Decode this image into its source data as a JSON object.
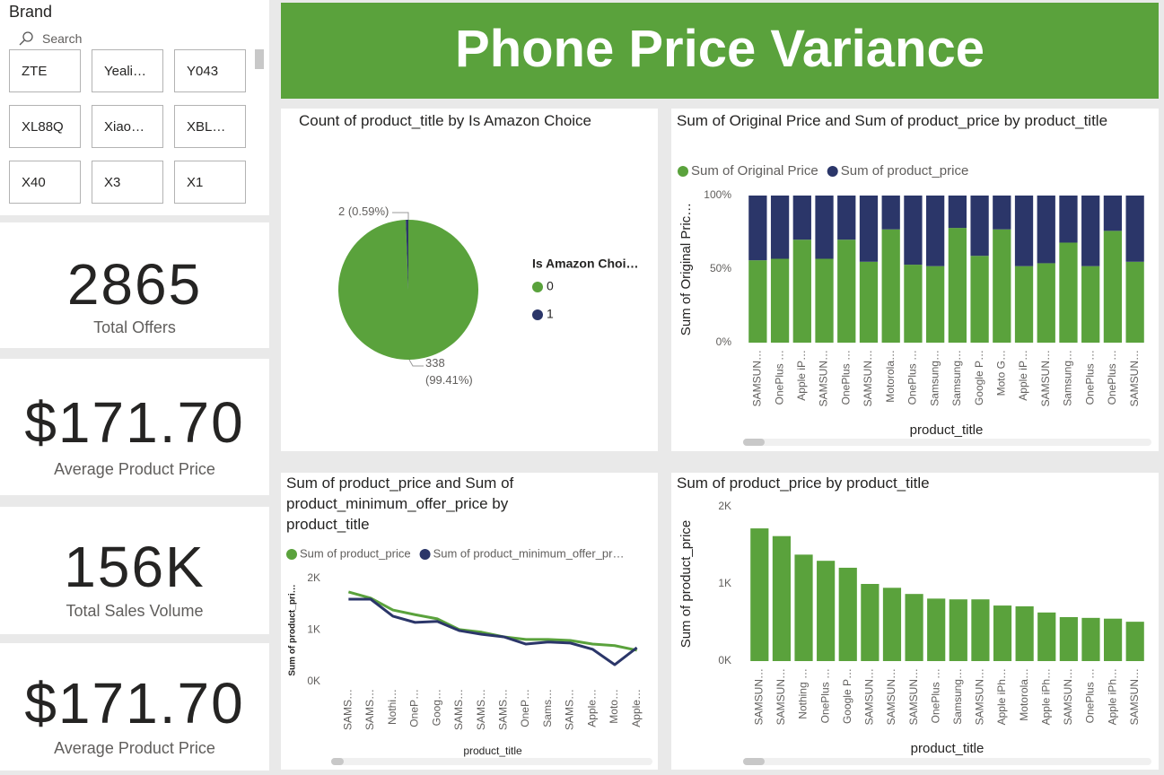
{
  "header": {
    "title": "Phone Price Variance"
  },
  "slicer": {
    "title": "Brand",
    "search": "Search",
    "items": [
      "ZTE",
      "Yeali…",
      "Y043",
      "XL88Q",
      "Xiao…",
      "XBL…",
      "X40",
      "X3",
      "X1"
    ]
  },
  "cards": [
    {
      "value": "2865",
      "label": "Total Offers"
    },
    {
      "value": "$171.70",
      "label": "Average Product Price"
    },
    {
      "value": "156K",
      "label": "Total Sales Volume"
    },
    {
      "value": "$171.70",
      "label": "Average Product Price"
    }
  ],
  "chart_data": [
    {
      "type": "pie",
      "title": "Count of product_title by Is Amazon Choice",
      "legend_title": "Is Amazon Choi…",
      "categories": [
        "0",
        "1"
      ],
      "values": [
        338,
        2
      ],
      "value_labels": [
        "338 (99.41%)",
        "2 (0.59%)"
      ],
      "colors": [
        "#5aa23c",
        "#2b3669"
      ]
    },
    {
      "type": "bar",
      "stacked": true,
      "title": "Sum of Original Price and Sum of product_price by product_title",
      "x_label": "product_title",
      "y_label": "Sum of Original Pric…",
      "categories": [
        "SAMSUN…",
        "OnePlus …",
        "Apple iP…",
        "SAMSUN…",
        "OnePlus …",
        "SAMSUN…",
        "Motorola…",
        "OnePlus …",
        "Samsung…",
        "Samsung…",
        "Google P…",
        "Moto G…",
        "Apple iP…",
        "SAMSUN…",
        "Samsung…",
        "OnePlus …",
        "OnePlus …",
        "SAMSUN…"
      ],
      "series": [
        {
          "name": "Sum of Original Price",
          "color": "#5aa23c",
          "values": [
            56,
            57,
            70,
            57,
            70,
            55,
            77,
            53,
            52,
            78,
            59,
            77,
            52,
            54,
            68,
            52,
            76,
            55
          ]
        },
        {
          "name": "Sum of product_price",
          "color": "#2b3669",
          "values": [
            44,
            43,
            30,
            43,
            30,
            45,
            23,
            47,
            48,
            22,
            41,
            23,
            48,
            46,
            32,
            48,
            24,
            45
          ]
        }
      ],
      "ylim": [
        0,
        100
      ],
      "yticks": [
        {
          "value": 0,
          "label": "0%"
        },
        {
          "value": 50,
          "label": "50%"
        },
        {
          "value": 100,
          "label": "100%"
        }
      ]
    },
    {
      "type": "line",
      "title": "Sum of product_price and Sum of product_minimum_offer_price by product_title",
      "x_label": "product_title",
      "y_label": "Sum of product_pri…",
      "categories": [
        "SAMS…",
        "SAMS…",
        "Nothi…",
        "OneP…",
        "Goog…",
        "SAMS…",
        "SAMS…",
        "SAMS…",
        "OneP…",
        "Sams…",
        "SAMS…",
        "Apple…",
        "Moto…",
        "Apple…"
      ],
      "series": [
        {
          "name": "Sum of product_price",
          "color": "#5aa23c",
          "values": [
            1740,
            1620,
            1390,
            1300,
            1220,
            1010,
            960,
            870,
            820,
            820,
            800,
            730,
            700,
            610
          ]
        },
        {
          "name": "Sum of product_minimum_offer_pr…",
          "color": "#2b3669",
          "values": [
            1600,
            1600,
            1270,
            1150,
            1170,
            990,
            920,
            870,
            730,
            770,
            750,
            630,
            330,
            660
          ]
        }
      ],
      "ylim": [
        0,
        2000
      ],
      "yticks": [
        {
          "value": 0,
          "label": "0K"
        },
        {
          "value": 1000,
          "label": "1K"
        },
        {
          "value": 2000,
          "label": "2K"
        }
      ]
    },
    {
      "type": "bar",
      "title": "Sum of product_price by product_title",
      "x_label": "product_title",
      "y_label": "Sum of product_price",
      "categories": [
        "SAMSUN…",
        "SAMSUN…",
        "Nothing …",
        "OnePlus …",
        "Google P…",
        "SAMSUN…",
        "SAMSUN…",
        "SAMSUN…",
        "OnePlus …",
        "Samsung…",
        "SAMSUN…",
        "Apple iPh…",
        "Motorola…",
        "Apple iPh…",
        "SAMSUN…",
        "OnePlus …",
        "Apple iPh…",
        "SAMSUN…"
      ],
      "values": [
        1720,
        1620,
        1380,
        1300,
        1210,
        1000,
        950,
        870,
        810,
        800,
        800,
        720,
        710,
        630,
        570,
        560,
        550,
        510
      ],
      "color": "#5aa23c",
      "ylim": [
        0,
        2000
      ],
      "yticks": [
        {
          "value": 0,
          "label": "0K"
        },
        {
          "value": 1000,
          "label": "1K"
        },
        {
          "value": 2000,
          "label": "2K"
        }
      ]
    }
  ]
}
